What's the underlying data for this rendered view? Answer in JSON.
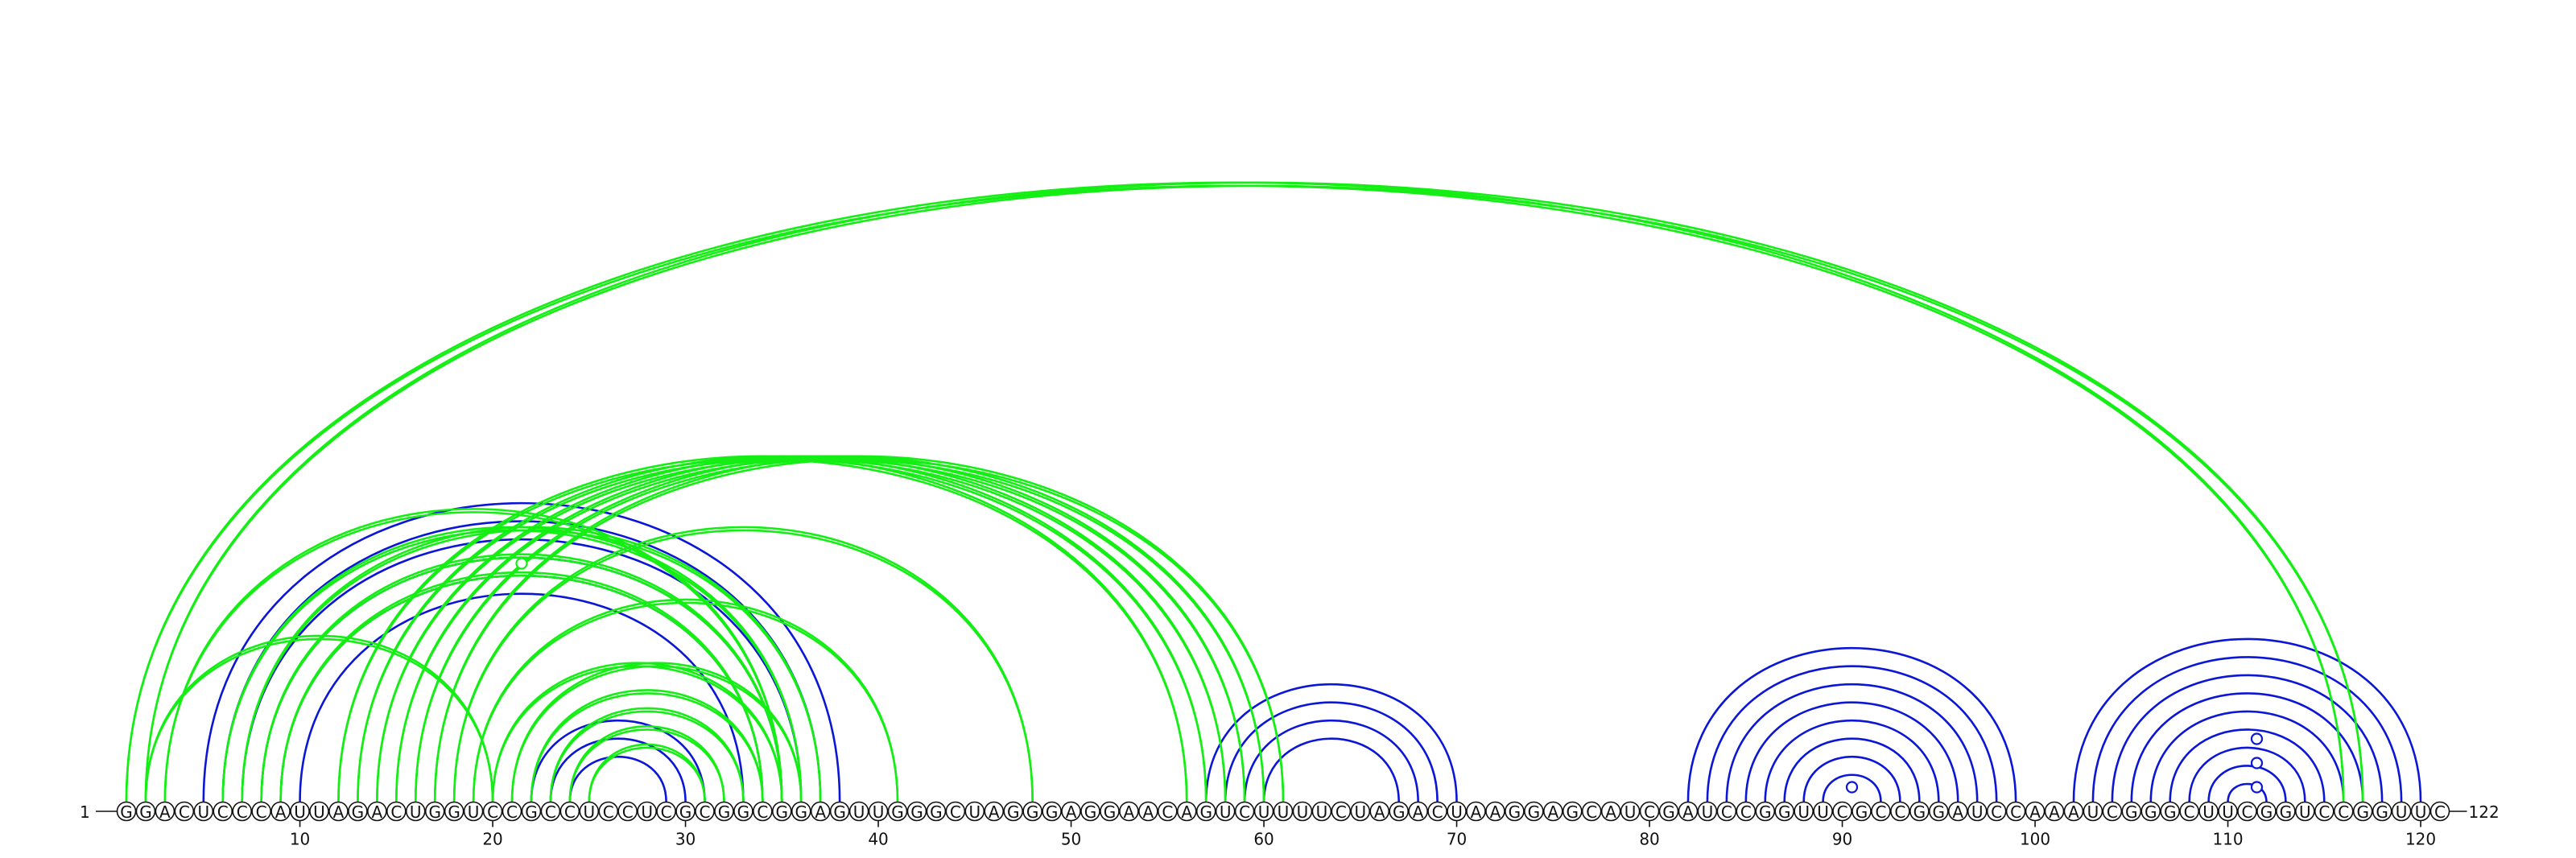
{
  "sequence": "GGACUCCCAUUAGACUGGUCCGCCUCCUCGCGGCGGAGUUGGGCUAGGGAGGAACAGUCUUUUCUAGACUAAGGAGCAUCGAUCCGGUUCGCCGGAUCCAAAUCGGGCUUCGGUCCGGUUC",
  "start_label": "1",
  "end_label": "122",
  "ticks": [
    10,
    20,
    30,
    40,
    50,
    60,
    70,
    80,
    90,
    100,
    110,
    120
  ],
  "colors": {
    "blue": "#0b16d6",
    "green": "#14ee14"
  },
  "pairs_blue": [
    [
      5,
      38
    ],
    [
      6,
      37
    ],
    [
      7,
      36
    ],
    [
      8,
      35
    ],
    [
      9,
      34
    ],
    [
      10,
      33
    ],
    [
      22,
      31
    ],
    [
      23,
      30
    ],
    [
      24,
      29
    ],
    [
      57,
      70
    ],
    [
      58,
      69
    ],
    [
      59,
      68
    ],
    [
      60,
      67
    ],
    [
      82,
      99
    ],
    [
      83,
      98
    ],
    [
      84,
      97
    ],
    [
      85,
      96
    ],
    [
      86,
      95
    ],
    [
      87,
      94
    ],
    [
      88,
      93
    ],
    [
      89,
      92
    ],
    [
      102,
      120
    ],
    [
      103,
      119
    ],
    [
      104,
      118
    ],
    [
      105,
      117
    ],
    [
      106,
      116
    ],
    [
      107,
      115
    ],
    [
      108,
      114
    ],
    [
      109,
      113
    ],
    [
      110,
      112
    ]
  ],
  "pairs_green": [
    [
      1,
      116
    ],
    [
      2,
      117
    ],
    [
      2,
      20
    ],
    [
      3,
      35
    ],
    [
      6,
      36
    ],
    [
      7,
      37
    ],
    [
      8,
      35
    ],
    [
      9,
      34
    ],
    [
      12,
      56
    ],
    [
      13,
      57
    ],
    [
      14,
      58
    ],
    [
      15,
      59
    ],
    [
      16,
      60
    ],
    [
      17,
      61
    ],
    [
      18,
      48
    ],
    [
      19,
      41
    ],
    [
      20,
      35
    ],
    [
      21,
      36
    ],
    [
      22,
      34
    ],
    [
      23,
      33
    ],
    [
      24,
      32
    ],
    [
      25,
      31
    ]
  ],
  "markers_blue": [
    90.5,
    111.5,
    111.5,
    111.5
  ],
  "marker_heights_blue": [
    0,
    0,
    1,
    2
  ],
  "marker_green": 21.5
}
